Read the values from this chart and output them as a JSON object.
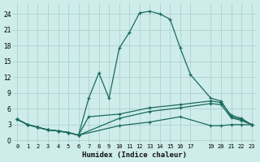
{
  "xlabel": "Humidex (Indice chaleur)",
  "background_color": "#cdecea",
  "grid_color": "#a8ccc8",
  "line_color": "#1a6b5a",
  "xlim": [
    -0.5,
    23.5
  ],
  "ylim": [
    -0.5,
    26
  ],
  "yticks": [
    0,
    3,
    6,
    9,
    12,
    15,
    18,
    21,
    24
  ],
  "xticks": [
    0,
    1,
    2,
    3,
    4,
    5,
    6,
    7,
    8,
    9,
    10,
    11,
    12,
    13,
    14,
    15,
    16,
    17,
    19,
    20,
    21,
    22,
    23
  ],
  "xtick_labels": [
    "0",
    "1",
    "2",
    "3",
    "4",
    "5",
    "6",
    "7",
    "8",
    "9",
    "10",
    "11",
    "12",
    "13",
    "14",
    "15",
    "16",
    "17",
    "19",
    "20",
    "21",
    "22",
    "23"
  ],
  "series1": [
    [
      0,
      4.0
    ],
    [
      1,
      3.0
    ],
    [
      2,
      2.5
    ],
    [
      3,
      2.0
    ],
    [
      4,
      1.8
    ],
    [
      5,
      1.5
    ],
    [
      6,
      1.0
    ],
    [
      7,
      8.0
    ],
    [
      8,
      12.8
    ],
    [
      9,
      8.0
    ],
    [
      10,
      17.5
    ],
    [
      11,
      20.5
    ],
    [
      12,
      24.2
    ],
    [
      13,
      24.5
    ],
    [
      14,
      24.0
    ],
    [
      15,
      23.0
    ],
    [
      16,
      17.5
    ],
    [
      17,
      12.5
    ],
    [
      19,
      8.0
    ],
    [
      20,
      7.5
    ],
    [
      21,
      4.5
    ],
    [
      22,
      4.0
    ],
    [
      23,
      3.0
    ]
  ],
  "series2": [
    [
      0,
      4.0
    ],
    [
      1,
      3.0
    ],
    [
      2,
      2.5
    ],
    [
      3,
      2.0
    ],
    [
      4,
      1.8
    ],
    [
      5,
      1.5
    ],
    [
      6,
      1.0
    ],
    [
      7,
      4.5
    ],
    [
      10,
      5.0
    ],
    [
      13,
      6.2
    ],
    [
      16,
      6.8
    ],
    [
      19,
      7.5
    ],
    [
      20,
      7.2
    ],
    [
      21,
      4.8
    ],
    [
      22,
      4.2
    ],
    [
      23,
      3.0
    ]
  ],
  "series3": [
    [
      0,
      4.0
    ],
    [
      1,
      3.0
    ],
    [
      2,
      2.5
    ],
    [
      3,
      2.0
    ],
    [
      4,
      1.8
    ],
    [
      5,
      1.5
    ],
    [
      6,
      1.0
    ],
    [
      10,
      4.2
    ],
    [
      13,
      5.5
    ],
    [
      16,
      6.2
    ],
    [
      19,
      7.0
    ],
    [
      20,
      6.8
    ],
    [
      21,
      4.3
    ],
    [
      22,
      3.8
    ],
    [
      23,
      3.0
    ]
  ],
  "series4": [
    [
      0,
      4.0
    ],
    [
      1,
      3.0
    ],
    [
      2,
      2.5
    ],
    [
      3,
      2.0
    ],
    [
      4,
      1.8
    ],
    [
      5,
      1.5
    ],
    [
      6,
      1.0
    ],
    [
      10,
      2.8
    ],
    [
      13,
      3.5
    ],
    [
      16,
      4.5
    ],
    [
      19,
      2.8
    ],
    [
      20,
      2.8
    ],
    [
      21,
      3.0
    ],
    [
      22,
      3.0
    ],
    [
      23,
      3.0
    ]
  ]
}
